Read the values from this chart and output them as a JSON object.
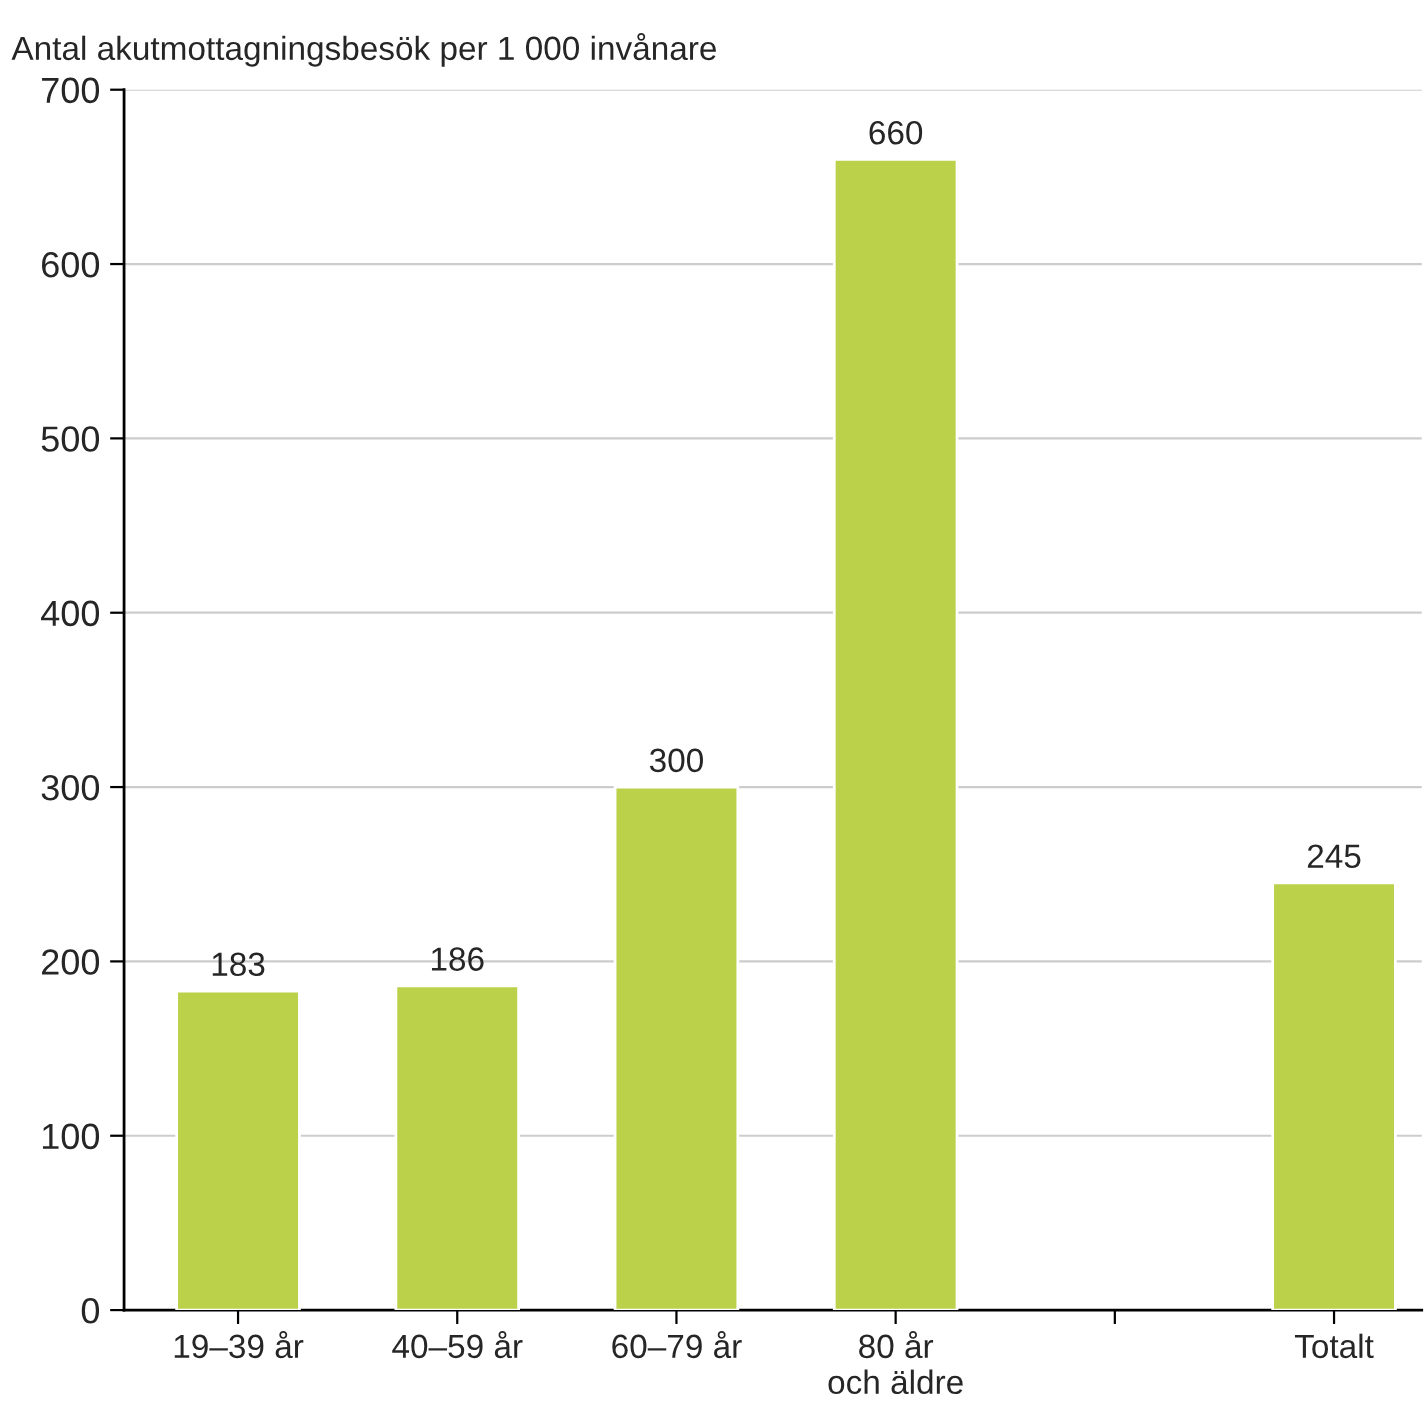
{
  "chart_data": {
    "type": "bar",
    "ylabel": "Antal akutmottagningsbesök per 1 000 invånare",
    "categories": [
      "19–39 år",
      "40–59 år",
      "60–79 år",
      "80 år\noch äldre",
      null,
      "Totalt"
    ],
    "values": [
      183,
      186,
      300,
      660,
      null,
      245
    ],
    "color": "#bcd14a",
    "ylim": [
      0,
      700
    ],
    "yticks": [
      0,
      100,
      200,
      300,
      400,
      500,
      600,
      700
    ],
    "grid": "y",
    "data_labels": true
  }
}
